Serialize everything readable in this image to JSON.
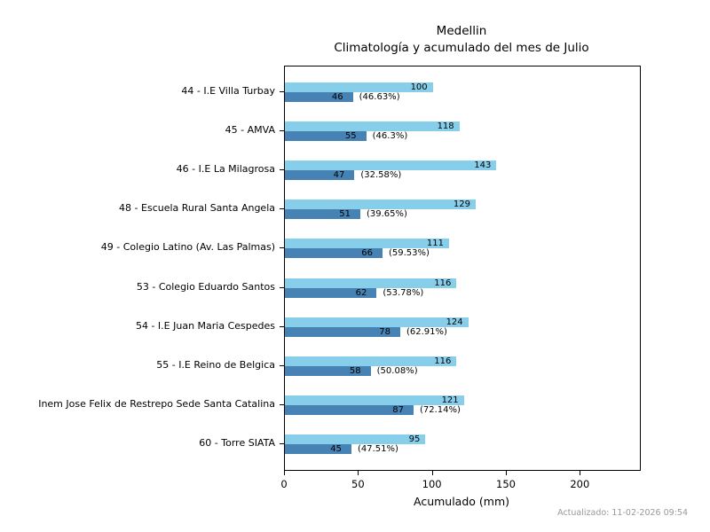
{
  "title": {
    "line1": "Medellin",
    "line2": "Climatología y acumulado del mes de Julio"
  },
  "footer": {
    "updated_text": "Actualizado: 11-02-2026 09:54"
  },
  "colors": {
    "climatology_bar": "#87CEEB",
    "accumulated_bar": "#4682B4",
    "axis": "#000000",
    "footer_text": "#999999",
    "background": "#ffffff"
  },
  "chart_data": {
    "type": "bar",
    "orientation": "horizontal",
    "title": "Medellin\nClimatología y acumulado del mes de Julio",
    "xlabel": "Acumulado (mm)",
    "ylabel": "",
    "xlim": [
      0,
      240
    ],
    "xticks": [
      0,
      50,
      100,
      150,
      200
    ],
    "grid": false,
    "legend": false,
    "categories": [
      "44 - I.E Villa Turbay",
      "45 - AMVA",
      "46 - I.E La Milagrosa",
      "48 - Escuela Rural Santa Angela",
      "49 - Colegio Latino (Av. Las Palmas)",
      "53 - Colegio Eduardo Santos",
      "54 - I.E Juan Maria Cespedes",
      "55 - I.E Reino de Belgica",
      "Inem Jose Felix de Restrepo Sede Santa Catalina",
      "60 - Torre SIATA"
    ],
    "series": [
      {
        "name": "Climatología",
        "color": "#87CEEB",
        "values": [
          100,
          118,
          143,
          129,
          111,
          116,
          124,
          116,
          121,
          95
        ],
        "bar_labels": [
          "100",
          "118",
          "143",
          "129",
          "111",
          "116",
          "124",
          "116",
          "121",
          "95"
        ]
      },
      {
        "name": "Acumulado",
        "color": "#4682B4",
        "values": [
          46,
          55,
          47,
          51,
          66,
          62,
          78,
          58,
          87,
          45
        ],
        "bar_labels": [
          "46",
          "55",
          "47",
          "51",
          "66",
          "62",
          "78",
          "58",
          "87",
          "45"
        ],
        "percent_labels": [
          "(46.63%)",
          "(46.3%)",
          "(32.58%)",
          "(39.65%)",
          "(59.53%)",
          "(53.78%)",
          "(62.91%)",
          "(50.08%)",
          "(72.14%)",
          "(47.51%)"
        ]
      }
    ]
  }
}
